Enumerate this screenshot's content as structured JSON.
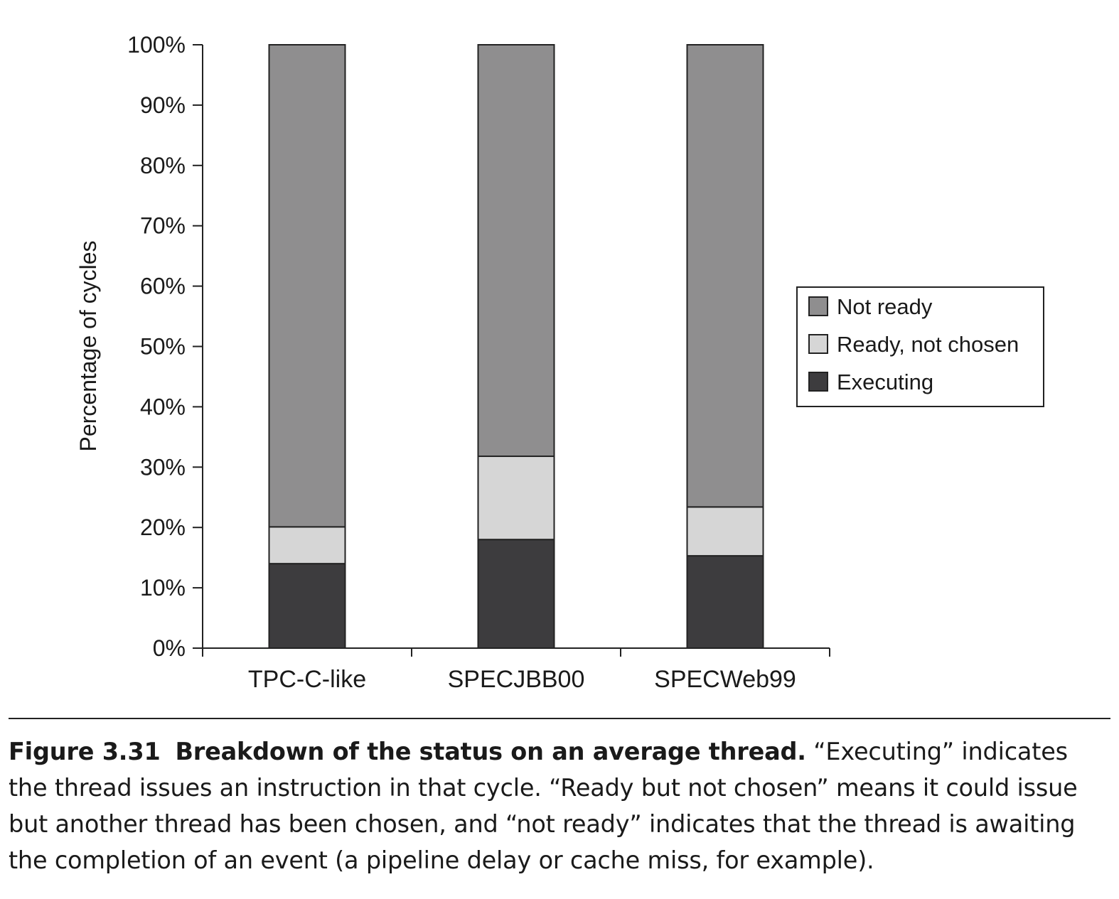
{
  "chart_data": {
    "type": "bar",
    "stacked": true,
    "categories": [
      "TPC-C-like",
      "SPECJBB00",
      "SPECWeb99"
    ],
    "series": [
      {
        "name": "Executing",
        "color": "#3d3c3e",
        "values": [
          14,
          18,
          15.3
        ]
      },
      {
        "name": "Ready, not chosen",
        "color": "#d6d6d6",
        "values": [
          6.1,
          13.8,
          8.1
        ]
      },
      {
        "name": "Not ready",
        "color": "#8f8e8f",
        "values": [
          79.9,
          68.2,
          76.6
        ]
      }
    ],
    "legend_order": [
      "Not ready",
      "Ready, not chosen",
      "Executing"
    ],
    "legend_position": "right",
    "ylabel": "Percentage of cycles",
    "xlabel": "",
    "ylim": [
      0,
      100
    ],
    "yticks": [
      "0%",
      "10%",
      "20%",
      "30%",
      "40%",
      "50%",
      "60%",
      "70%",
      "80%",
      "90%",
      "100%"
    ],
    "grid": false
  },
  "caption": {
    "number": "Figure 3.31",
    "title": "Breakdown of the status on an average thread.",
    "text": "“Executing” indicates the thread issues an instruction in that cycle. “Ready but not chosen” means it could issue but another thread has been chosen, and “not ready” indicates that the thread is awaiting the completion of an event (a pipeline delay or cache miss, for example)."
  }
}
